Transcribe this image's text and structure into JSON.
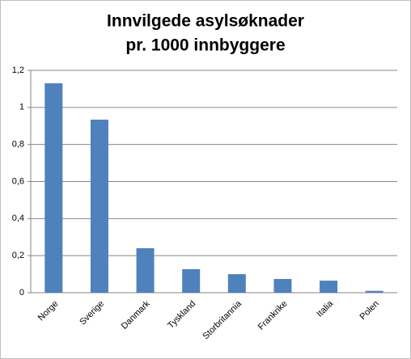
{
  "chart_data": {
    "type": "bar",
    "title": [
      "Innvilgede asylsøknader",
      "pr. 1000 innbyggere"
    ],
    "categories": [
      "Norge",
      "Sverige",
      "Danmark",
      "Tyskland",
      "Storbritannia",
      "Frankrike",
      "Italia",
      "Polen"
    ],
    "values": [
      1.13,
      0.934,
      0.24,
      0.127,
      0.1,
      0.074,
      0.065,
      0.01
    ],
    "color": "#4f81bd",
    "ylim": [
      0,
      1.2
    ],
    "yticks": [
      0,
      {
        "value": 0.2,
        "label": "0,2"
      },
      {
        "value": 0.4,
        "label": "0,4"
      },
      {
        "value": 0.6,
        "label": "0,6"
      },
      {
        "value": 0.8,
        "label": "0,8"
      },
      1,
      {
        "value": 1.2,
        "label": "1,2"
      }
    ],
    "grid": true
  }
}
